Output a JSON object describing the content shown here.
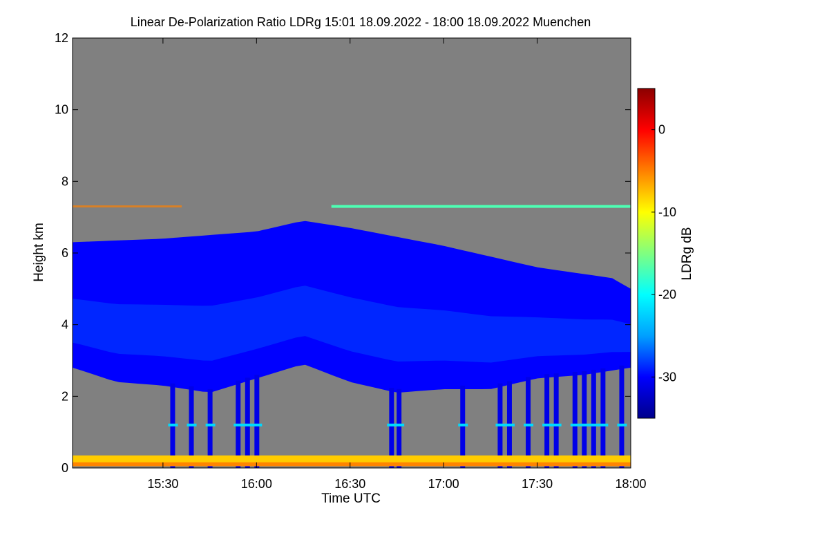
{
  "chart_data": {
    "type": "heatmap",
    "title": "Linear De-Polarization Ratio LDRg   15:01 18.09.2022 - 18:00 18.09.2022 Muenchen",
    "xlabel": "Time UTC",
    "ylabel": "Height km",
    "x_range_hours": [
      15.0167,
      18.0
    ],
    "x_ticks": [
      "15:30",
      "16:00",
      "16:30",
      "17:00",
      "17:30",
      "18:00"
    ],
    "x_tick_values_hours": [
      15.5,
      16.0,
      16.5,
      17.0,
      17.5,
      18.0
    ],
    "ylim": [
      0,
      12
    ],
    "y_ticks": [
      0,
      2,
      4,
      6,
      8,
      10,
      12
    ],
    "colorbar": {
      "label": "LDRg dB",
      "range": [
        -35,
        5
      ],
      "ticks": [
        0,
        -10,
        -20,
        -30
      ],
      "colormap": [
        "#00008b",
        "#0000ff",
        "#00a0ff",
        "#00ffff",
        "#80ff80",
        "#ffff00",
        "#ff8000",
        "#ff0000",
        "#8b0000"
      ]
    },
    "no_signal_color": "#808080",
    "features": {
      "cloud_layer": {
        "ldr_db": -30,
        "base_km_approx": 2.5,
        "top_km_approx": 6.3
      },
      "cloud_top_km_by_hour": [
        [
          15.02,
          6.3
        ],
        [
          15.5,
          6.4
        ],
        [
          16.0,
          6.6
        ],
        [
          16.25,
          6.9
        ],
        [
          16.5,
          6.7
        ],
        [
          17.0,
          6.2
        ],
        [
          17.5,
          5.6
        ],
        [
          17.9,
          5.3
        ],
        [
          18.0,
          5.0
        ]
      ],
      "cloud_base_km_by_hour": [
        [
          15.02,
          2.8
        ],
        [
          15.25,
          2.4
        ],
        [
          15.5,
          2.3
        ],
        [
          15.75,
          2.1
        ],
        [
          16.0,
          2.5
        ],
        [
          16.25,
          2.9
        ],
        [
          16.5,
          2.4
        ],
        [
          16.75,
          2.1
        ],
        [
          17.0,
          2.2
        ],
        [
          17.25,
          2.2
        ],
        [
          17.5,
          2.5
        ],
        [
          17.75,
          2.6
        ],
        [
          18.0,
          2.8
        ]
      ],
      "near_surface_band": {
        "bottom_km": 0.05,
        "top_km": 0.35,
        "ldr_db": -8
      },
      "thin_layer": {
        "height_km": 7.3,
        "ldr_db": -17
      },
      "melting_layer": {
        "height_km": 1.2,
        "ldr_db": -22
      },
      "precip_streaks_hours": [
        15.55,
        15.65,
        15.75,
        15.9,
        15.95,
        16.0,
        16.72,
        16.76,
        17.1,
        17.3,
        17.35,
        17.45,
        17.55,
        17.6,
        17.7,
        17.75,
        17.8,
        17.85,
        17.95
      ]
    }
  }
}
